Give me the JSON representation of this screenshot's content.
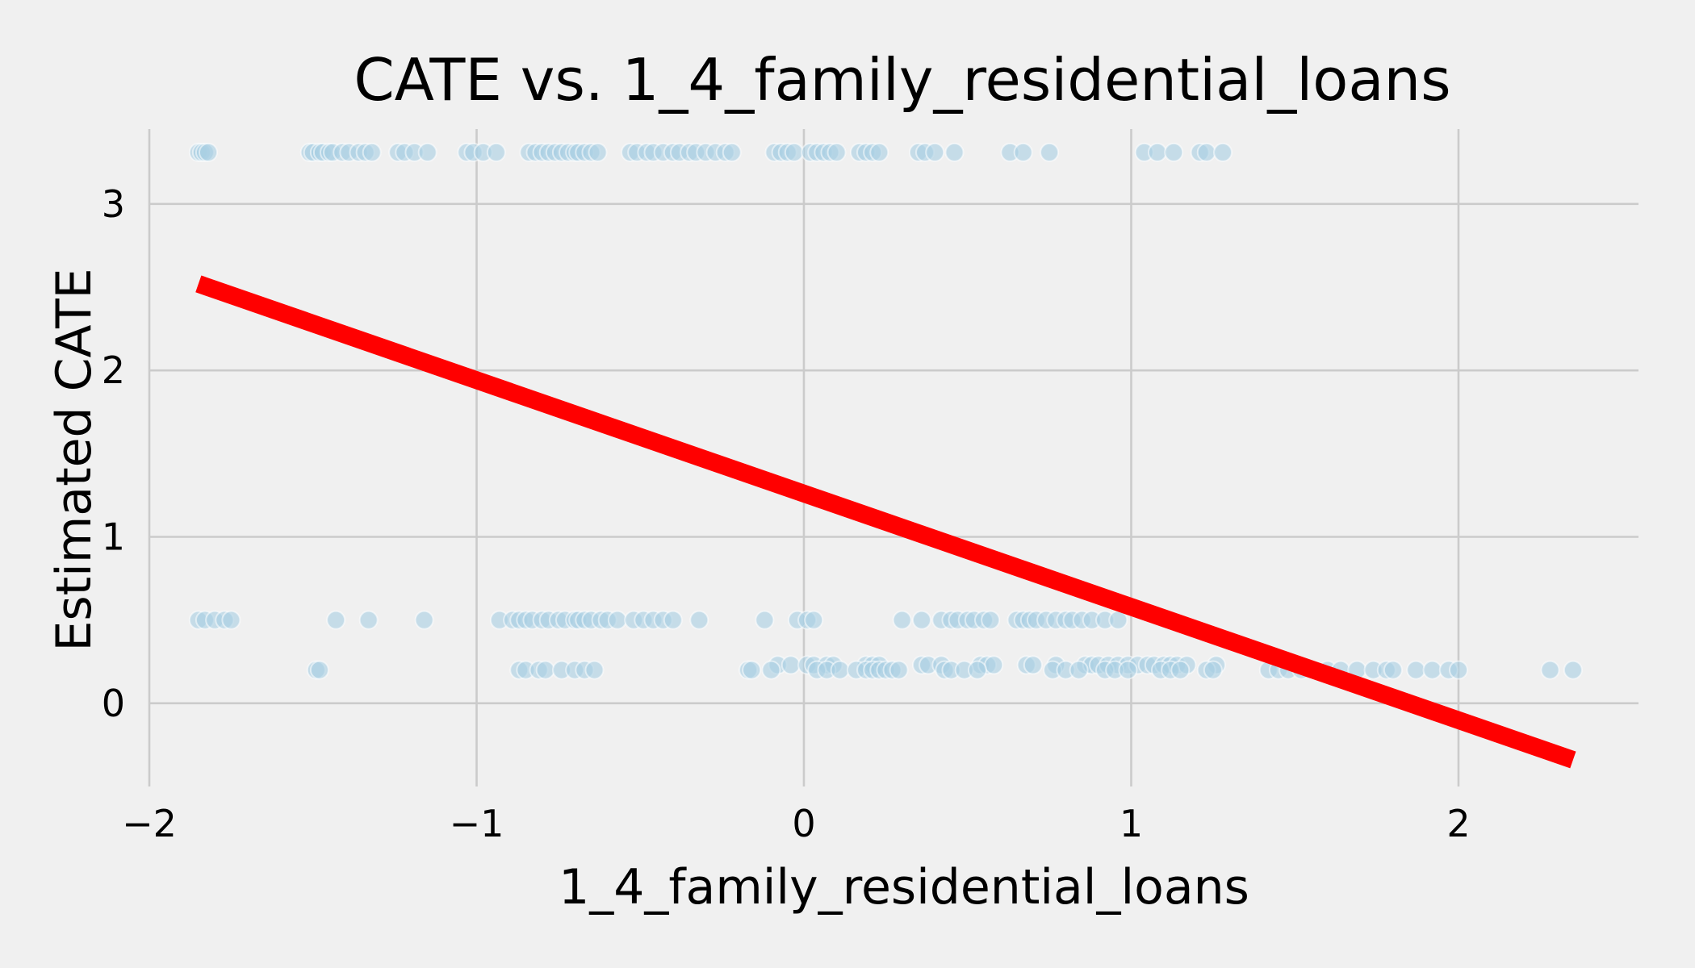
{
  "chart_data": {
    "type": "scatter",
    "title": "CATE vs. 1_4_family_residential_loans",
    "xlabel": "1_4_family_residential_loans",
    "ylabel": "Estimated CATE",
    "xlim": [
      -2.0,
      2.55
    ],
    "ylim": [
      -0.5,
      3.45
    ],
    "xticks": [
      -2,
      -1,
      0,
      1,
      2
    ],
    "xtick_labels": [
      "−2",
      "−1",
      "0",
      "1",
      "2"
    ],
    "yticks": [
      0,
      1,
      2,
      3
    ],
    "ytick_labels": [
      "0",
      "1",
      "2",
      "3"
    ],
    "grid": true,
    "colors": {
      "points": "#a8cee3",
      "fit_line": "#ff0000",
      "background": "#f0f0f0",
      "grid": "#cbcbcb"
    },
    "fit_line": {
      "x": [
        -1.85,
        2.35
      ],
      "y": [
        2.52,
        -0.34
      ]
    },
    "series": [
      {
        "x": [
          -1.85,
          -1.84,
          -1.83,
          -1.82,
          -1.51,
          -1.5,
          -1.48,
          -1.47,
          -1.45,
          -1.44,
          -1.41,
          -1.39,
          -1.36,
          -1.34,
          -1.32,
          -1.24,
          -1.22,
          -1.19,
          -1.15,
          -1.03,
          -1.01,
          -0.98,
          -0.94,
          -0.84,
          -0.82,
          -0.8,
          -0.78,
          -0.76,
          -0.74,
          -0.72,
          -0.7,
          -0.69,
          -0.67,
          -0.65,
          -0.63,
          -0.53,
          -0.51,
          -0.48,
          -0.46,
          -0.43,
          -0.4,
          -0.38,
          -0.35,
          -0.33,
          -0.3,
          -0.27,
          -0.24,
          -0.22,
          -0.09,
          -0.07,
          -0.05,
          -0.03,
          0.02,
          0.04,
          0.06,
          0.08,
          0.1,
          0.17,
          0.19,
          0.21,
          0.23,
          0.35,
          0.37,
          0.4,
          0.46,
          0.63,
          0.67,
          0.75,
          1.04,
          1.08,
          1.13,
          1.21,
          1.23,
          1.28
        ],
        "y": [
          3.31,
          3.31,
          3.31,
          3.31,
          3.31,
          3.31,
          3.31,
          3.31,
          3.31,
          3.31,
          3.31,
          3.31,
          3.31,
          3.31,
          3.31,
          3.31,
          3.31,
          3.31,
          3.31,
          3.31,
          3.31,
          3.31,
          3.31,
          3.31,
          3.31,
          3.31,
          3.31,
          3.31,
          3.31,
          3.31,
          3.31,
          3.31,
          3.31,
          3.31,
          3.31,
          3.31,
          3.31,
          3.31,
          3.31,
          3.31,
          3.31,
          3.31,
          3.31,
          3.31,
          3.31,
          3.31,
          3.31,
          3.31,
          3.31,
          3.31,
          3.31,
          3.31,
          3.31,
          3.31,
          3.31,
          3.31,
          3.31,
          3.31,
          3.31,
          3.31,
          3.31,
          3.31,
          3.31,
          3.31,
          3.31,
          3.31,
          3.31,
          3.31,
          3.31,
          3.31,
          3.31,
          3.31,
          3.31,
          3.31
        ]
      },
      {
        "x": [
          -1.85,
          -1.83,
          -1.8,
          -1.77,
          -1.75,
          -1.43,
          -1.33,
          -1.16,
          -0.93,
          -0.89,
          -0.87,
          -0.85,
          -0.83,
          -0.8,
          -0.78,
          -0.75,
          -0.73,
          -0.7,
          -0.69,
          -0.67,
          -0.65,
          -0.62,
          -0.6,
          -0.57,
          -0.52,
          -0.49,
          -0.46,
          -0.43,
          -0.4,
          -0.32,
          -0.12,
          -0.02,
          0.01,
          0.03,
          0.3,
          0.36,
          0.42,
          0.45,
          0.47,
          0.5,
          0.52,
          0.55,
          0.57,
          0.65,
          0.67,
          0.69,
          0.71,
          0.74,
          0.77,
          0.8,
          0.82,
          0.85,
          0.88,
          0.92,
          0.96
        ],
        "y": [
          0.5,
          0.5,
          0.5,
          0.5,
          0.5,
          0.5,
          0.5,
          0.5,
          0.5,
          0.5,
          0.5,
          0.5,
          0.5,
          0.5,
          0.5,
          0.5,
          0.5,
          0.5,
          0.5,
          0.5,
          0.5,
          0.5,
          0.5,
          0.5,
          0.5,
          0.5,
          0.5,
          0.5,
          0.5,
          0.5,
          0.5,
          0.5,
          0.5,
          0.5,
          0.5,
          0.5,
          0.5,
          0.5,
          0.5,
          0.5,
          0.5,
          0.5,
          0.5,
          0.5,
          0.5,
          0.5,
          0.5,
          0.5,
          0.5,
          0.5,
          0.5,
          0.5,
          0.5,
          0.5,
          0.5
        ]
      },
      {
        "x": [
          -0.08,
          -0.04,
          0.01,
          0.03,
          0.07,
          0.09,
          0.19,
          0.21,
          0.23,
          0.36,
          0.38,
          0.42,
          0.54,
          0.56,
          0.58,
          0.68,
          0.7,
          0.77,
          0.86,
          0.88,
          0.9,
          0.93,
          0.96,
          0.99,
          1.02,
          1.05,
          1.07,
          1.1,
          1.12,
          1.14,
          1.17,
          1.26
        ],
        "y": [
          0.23,
          0.23,
          0.23,
          0.23,
          0.23,
          0.23,
          0.23,
          0.23,
          0.23,
          0.23,
          0.23,
          0.23,
          0.23,
          0.23,
          0.23,
          0.23,
          0.23,
          0.23,
          0.23,
          0.23,
          0.23,
          0.23,
          0.23,
          0.23,
          0.23,
          0.23,
          0.23,
          0.23,
          0.23,
          0.23,
          0.23,
          0.23
        ]
      },
      {
        "x": [
          -1.49,
          -1.48,
          -0.87,
          -0.85,
          -0.81,
          -0.79,
          -0.74,
          -0.7,
          -0.67,
          -0.64,
          -0.17,
          -0.16,
          -0.1,
          0.04,
          0.07,
          0.11,
          0.16,
          0.19,
          0.21,
          0.23,
          0.25,
          0.27,
          0.29,
          0.43,
          0.45,
          0.49,
          0.53,
          0.76,
          0.8,
          0.84,
          0.92,
          0.95,
          0.99,
          1.09,
          1.12,
          1.15,
          1.23,
          1.25,
          1.42,
          1.45,
          1.48,
          1.52,
          1.56,
          1.6,
          1.64,
          1.69,
          1.74,
          1.78,
          1.8,
          1.87,
          1.92,
          1.97,
          2.0,
          2.28,
          2.35
        ],
        "y": [
          0.2,
          0.2,
          0.2,
          0.2,
          0.2,
          0.2,
          0.2,
          0.2,
          0.2,
          0.2,
          0.2,
          0.2,
          0.2,
          0.2,
          0.2,
          0.2,
          0.2,
          0.2,
          0.2,
          0.2,
          0.2,
          0.2,
          0.2,
          0.2,
          0.2,
          0.2,
          0.2,
          0.2,
          0.2,
          0.2,
          0.2,
          0.2,
          0.2,
          0.2,
          0.2,
          0.2,
          0.2,
          0.2,
          0.2,
          0.2,
          0.2,
          0.2,
          0.2,
          0.2,
          0.2,
          0.2,
          0.2,
          0.2,
          0.2,
          0.2,
          0.2,
          0.2,
          0.2,
          0.2,
          0.2
        ]
      }
    ]
  }
}
